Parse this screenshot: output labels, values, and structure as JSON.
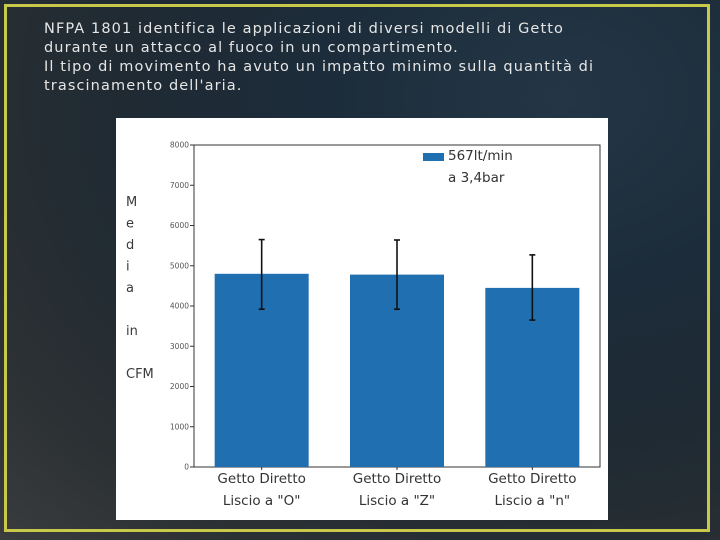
{
  "slide": {
    "title_lines": [
      "NFPA 1801 identifica le applicazioni di diversi modelli di Getto",
      "durante un attacco al fuoco in un compartimento.",
      "Il tipo di movimento ha avuto un impatto minimo sulla quantità di",
      "trascinamento dell'aria."
    ],
    "accent_color": "#c8c84a"
  },
  "chart_data": {
    "type": "bar",
    "categories": [
      [
        "Getto Diretto",
        "Liscio a \"O\""
      ],
      [
        "Getto Diretto",
        "Liscio a \"Z\""
      ],
      [
        "Getto Diretto",
        "Liscio a \"n\""
      ]
    ],
    "series": [
      {
        "name": "567lt/min a 3,4bar",
        "legend_lines": [
          "567lt/min",
          "a 3,4bar"
        ],
        "values": [
          4800,
          4780,
          4450
        ],
        "error_high": [
          5650,
          5640,
          5270
        ],
        "error_low": [
          3920,
          3920,
          3650
        ],
        "color": "#1f6fb1"
      }
    ],
    "ylabel_lines": [
      "M",
      "e",
      "d",
      "i",
      "a",
      "",
      "in",
      "",
      "CFM"
    ],
    "ylim": [
      0,
      8000
    ],
    "yticks": [
      "0",
      "1000",
      "2000",
      "3000",
      "4000",
      "5000",
      "6000",
      "7000",
      "8000"
    ],
    "grid": false,
    "legend_position": "top-right"
  }
}
